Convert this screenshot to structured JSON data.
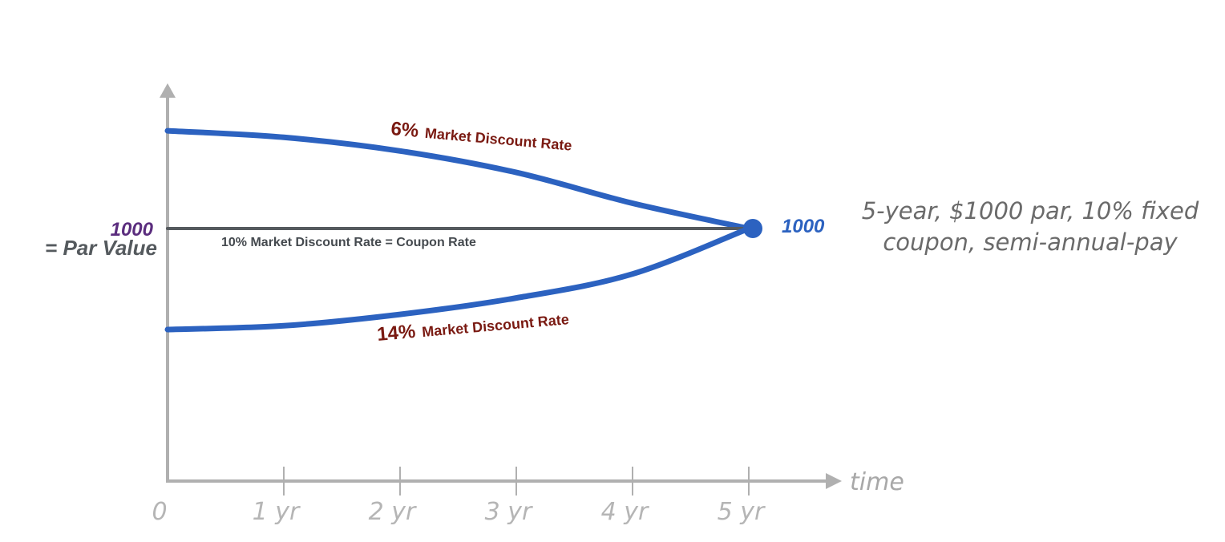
{
  "chart_data": {
    "type": "line",
    "x_ticks": [
      "0",
      "1 yr",
      "2 yr",
      "3 yr",
      "4 yr",
      "5 yr"
    ],
    "x_values": [
      0,
      1,
      2,
      3,
      4,
      5
    ],
    "xlabel": "time",
    "xlim": [
      0,
      5.8
    ],
    "ylim": [
      0,
      1575
    ],
    "grid": false,
    "par": {
      "value": 1000,
      "value_label": "1000",
      "label": "= Par Value",
      "end_label": "1000"
    },
    "series": [
      {
        "rate_pct": "6%",
        "rate_text": "Market Discount Rate",
        "color": "#2c62c0",
        "x": [
          0,
          1,
          2,
          3,
          4,
          5
        ],
        "y": [
          1387,
          1361,
          1307,
          1222,
          1100,
          1000
        ]
      },
      {
        "name": "10% Market Discount Rate = Coupon Rate",
        "color": "#555a5e",
        "x": [
          0,
          5
        ],
        "y": [
          1000,
          1000
        ]
      },
      {
        "rate_pct": "14%",
        "rate_text": "Market Discount Rate",
        "color": "#2c62c0",
        "x": [
          0,
          1,
          2,
          3,
          4,
          5
        ],
        "y": [
          600,
          615,
          660,
          725,
          820,
          1000
        ]
      }
    ],
    "annotation": {
      "line1": "5-year, $1000 par, 10% fixed",
      "line2": "coupon, semi-annual-pay"
    },
    "colors": {
      "axis": "#b0b0b0",
      "curve": "#2c62c0",
      "par_line": "#555a5e",
      "rate_label": "#7a1a12",
      "par_value": "#5b2d7e",
      "tick_text": "#b5b5b5"
    }
  }
}
